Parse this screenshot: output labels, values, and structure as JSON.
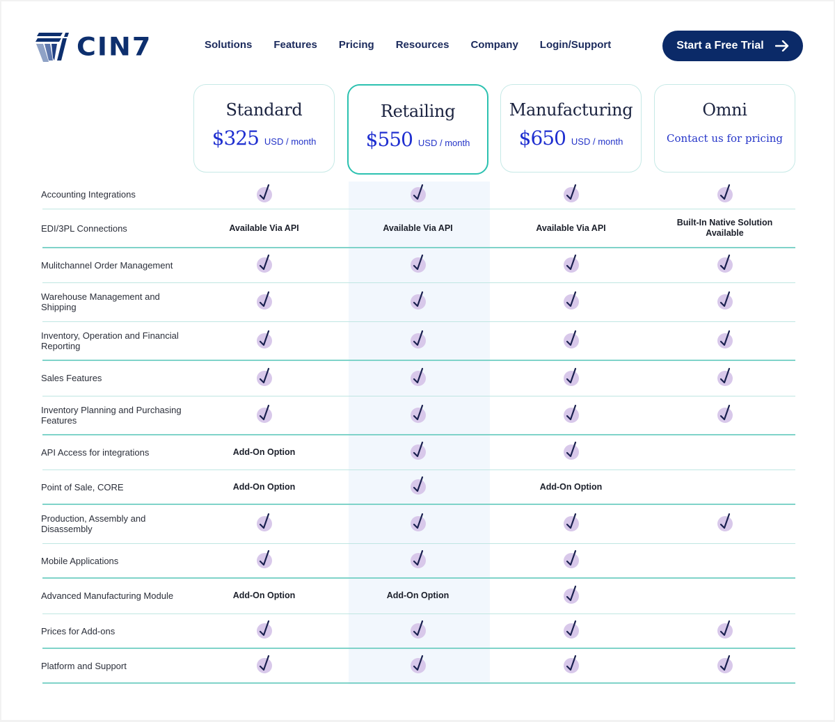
{
  "header": {
    "logo_text": "CIN7",
    "nav": [
      "Solutions",
      "Features",
      "Pricing",
      "Resources",
      "Company",
      "Login/Support"
    ],
    "cta_label": "Start a Free Trial"
  },
  "plans": [
    {
      "name": "Standard",
      "price": "$325",
      "unit": "USD / month",
      "featured": false
    },
    {
      "name": "Retailing",
      "price": "$550",
      "unit": "USD / month",
      "featured": true
    },
    {
      "name": "Manufacturing",
      "price": "$650",
      "unit": "USD / month",
      "featured": false
    },
    {
      "name": "Omni",
      "contact": "Contact us for pricing",
      "featured": false
    }
  ],
  "features": [
    {
      "label": "Accounting Integrations",
      "values": [
        "check",
        "check",
        "check",
        "check"
      ]
    },
    {
      "label": "EDI/3PL Connections",
      "values": [
        "Available Via API",
        "Available Via API",
        "Available Via API",
        "Built-In Native Solution Available"
      ]
    },
    {
      "label": "Mulitchannel Order Management",
      "values": [
        "check",
        "check",
        "check",
        "check"
      ]
    },
    {
      "label": "Warehouse Management and Shipping",
      "values": [
        "check",
        "check",
        "check",
        "check"
      ]
    },
    {
      "label": "Inventory, Operation and Financial Reporting",
      "values": [
        "check",
        "check",
        "check",
        "check"
      ]
    },
    {
      "label": "Sales Features",
      "values": [
        "check",
        "check",
        "check",
        "check"
      ]
    },
    {
      "label": "Inventory Planning and Purchasing Features",
      "values": [
        "check",
        "check",
        "check",
        "check"
      ]
    },
    {
      "label": "API Access for integrations",
      "values": [
        "Add-On Option",
        "check",
        "check",
        ""
      ]
    },
    {
      "label": "Point of Sale, CORE",
      "values": [
        "Add-On Option",
        "check",
        "Add-On Option",
        ""
      ]
    },
    {
      "label": "Production, Assembly and Disassembly",
      "values": [
        "check",
        "check",
        "check",
        "check"
      ]
    },
    {
      "label": "Mobile Applications",
      "values": [
        "check",
        "check",
        "check",
        ""
      ]
    },
    {
      "label": "Advanced Manufacturing Module",
      "values": [
        "Add-On Option",
        "Add-On Option",
        "check",
        ""
      ]
    },
    {
      "label": "Prices for Add-ons",
      "values": [
        "check",
        "check",
        "check",
        "check"
      ]
    },
    {
      "label": "Platform and Support",
      "values": [
        "check",
        "check",
        "check",
        "check"
      ]
    }
  ],
  "colors": {
    "brand_navy": "#0b2a68",
    "price_blue": "#1f2fd0",
    "accent_teal": "#2cc1b0",
    "check_bg": "#d8c8ea",
    "highlight_col": "#f2f7fd"
  }
}
